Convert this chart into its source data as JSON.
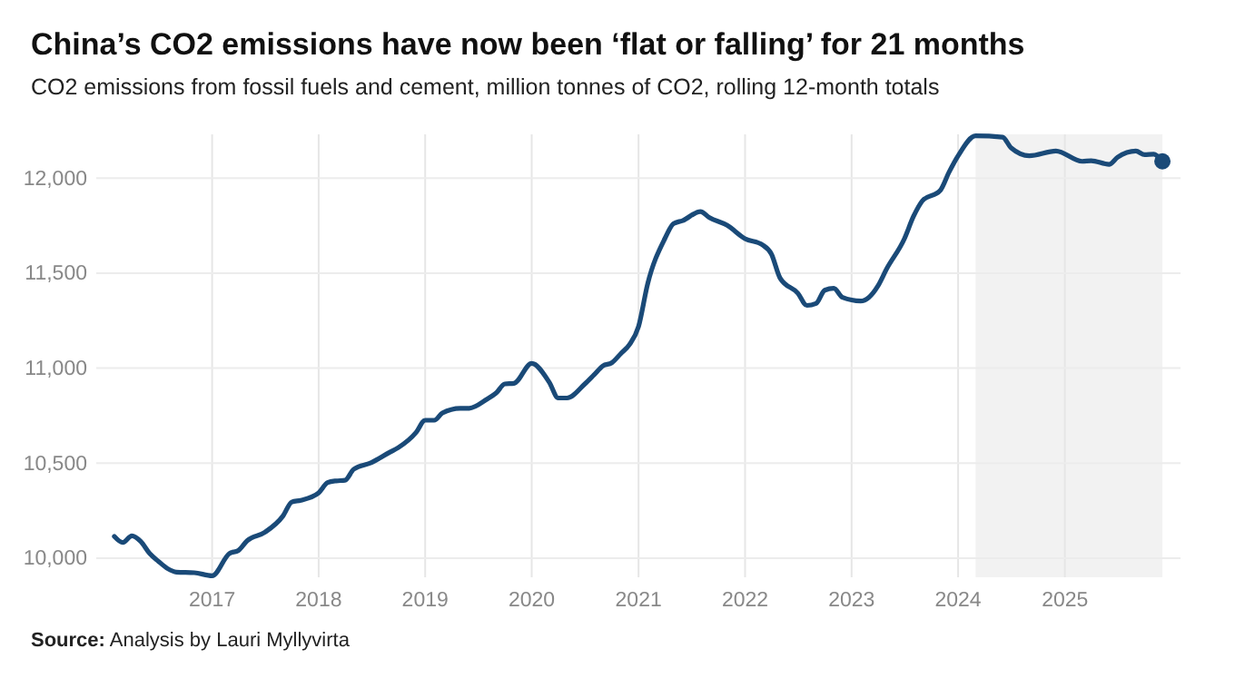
{
  "chart_data": {
    "type": "line",
    "title": "China’s CO2 emissions have now been ‘flat or falling’ for 21 months",
    "subtitle": "CO2 emissions from fossil fuels and cement, million tonnes of CO2, rolling 12-month totals",
    "annotations": [
      "Source: Analysis by Lauri Myllyvirta"
    ],
    "series": [
      {
        "color": "#1a4a78",
        "x": [
          "2016-02",
          "2016-03",
          "2016-04",
          "2016-05",
          "2016-06",
          "2016-07",
          "2016-08",
          "2016-09",
          "2016-11",
          "2017-01",
          "2017-03",
          "2017-04",
          "2017-05",
          "2017-07",
          "2017-09",
          "2017-10",
          "2017-11",
          "2018-01",
          "2018-02",
          "2018-03",
          "2018-04",
          "2018-05",
          "2018-07",
          "2018-09",
          "2018-10",
          "2018-12",
          "2019-01",
          "2019-02",
          "2019-03",
          "2019-05",
          "2019-06",
          "2019-08",
          "2019-09",
          "2019-10",
          "2019-11",
          "2020-01",
          "2020-03",
          "2020-04",
          "2020-05",
          "2020-07",
          "2020-08",
          "2020-09",
          "2020-10",
          "2020-11",
          "2020-12",
          "2021-01",
          "2021-02",
          "2021-04",
          "2021-05",
          "2021-06",
          "2021-08",
          "2021-09",
          "2021-11",
          "2022-01",
          "2022-03",
          "2022-04",
          "2022-05",
          "2022-07",
          "2022-08",
          "2022-09",
          "2022-10",
          "2022-11",
          "2022-12",
          "2023-02",
          "2023-03",
          "2023-04",
          "2023-05",
          "2023-07",
          "2023-08",
          "2023-09",
          "2023-11",
          "2023-12",
          "2024-01",
          "2024-03",
          "2024-06",
          "2024-07",
          "2024-09",
          "2024-12",
          "2025-03",
          "2025-04",
          "2025-06",
          "2025-07",
          "2025-09",
          "2025-10",
          "2025-11",
          "2025-12"
        ],
        "values": [
          10115,
          10083,
          10118,
          10089,
          10025,
          9984,
          9946,
          9927,
          9924,
          9908,
          10025,
          10041,
          10092,
          10137,
          10223,
          10296,
          10305,
          10344,
          10398,
          10407,
          10410,
          10468,
          10503,
          10557,
          10582,
          10662,
          10726,
          10726,
          10764,
          10789,
          10789,
          10837,
          10869,
          10917,
          10920,
          11025,
          10926,
          10843,
          10843,
          10917,
          10964,
          11012,
          11028,
          11076,
          11124,
          11219,
          11442,
          11681,
          11760,
          11776,
          11824,
          11792,
          11751,
          11681,
          11649,
          11601,
          11474,
          11394,
          11330,
          11340,
          11410,
          11420,
          11372,
          11353,
          11372,
          11432,
          11522,
          11681,
          11798,
          11881,
          11935,
          12031,
          12117,
          12222,
          12215,
          12158,
          12117,
          12142,
          12088,
          12091,
          12072,
          12110,
          12142,
          12123,
          12126,
          12088
        ]
      },
      {
        "type": "scatter",
        "color": "#1a4a78",
        "x": [
          "2025-12"
        ],
        "values": [
          12088
        ]
      }
    ],
    "xlim": [
      "2015-12",
      "2026-02"
    ],
    "xticks": [
      {
        "value": "2017-01",
        "label": "2017"
      },
      {
        "value": "2018-01",
        "label": "2018"
      },
      {
        "value": "2019-01",
        "label": "2019"
      },
      {
        "value": "2020-01",
        "label": "2020"
      },
      {
        "value": "2021-01",
        "label": "2021"
      },
      {
        "value": "2022-01",
        "label": "2022"
      },
      {
        "value": "2023-01",
        "label": "2023"
      },
      {
        "value": "2024-01",
        "label": "2024"
      },
      {
        "value": "2025-01",
        "label": "2025"
      }
    ],
    "ylim": [
      9900,
      12230
    ],
    "yticks": [
      {
        "value": 10000,
        "label": "10,000"
      },
      {
        "value": 10500,
        "label": "10,500"
      },
      {
        "value": 11000,
        "label": "11,000"
      },
      {
        "value": 11500,
        "label": "11,500"
      },
      {
        "value": 12000,
        "label": "12,000"
      }
    ],
    "bands": [
      {
        "axis": "x",
        "from": "2024-03",
        "to": "2025-12",
        "color": "#f2f2f2"
      }
    ],
    "grid": true,
    "line_style": "solid"
  }
}
